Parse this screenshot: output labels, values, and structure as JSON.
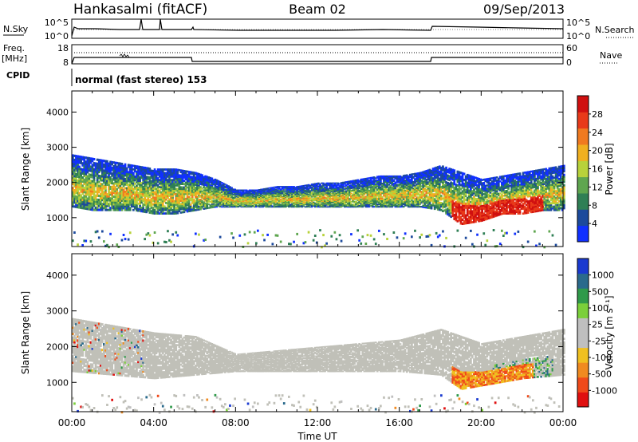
{
  "header": {
    "station": "Hankasalmi (fitACF)",
    "beam": "Beam 02",
    "date": "09/Sep/2013"
  },
  "top_panels": {
    "nsky_label": "N.Sky",
    "nsky_ticks": [
      "10^5",
      "10^0"
    ],
    "nsearch_label": "N.Search",
    "nsearch_ticks": [
      "10^5",
      "10^0"
    ],
    "freq_label": "Freq.",
    "freq_unit": "[MHz]",
    "freq_ticks": [
      "18",
      "8"
    ],
    "nave_label": "Nave",
    "nave_ticks": [
      "60",
      "0"
    ],
    "cpid_label": "CPID",
    "cpid_text": "normal (fast stereo) 153"
  },
  "chart_data": [
    {
      "type": "heatmap",
      "title": "",
      "xlabel": "Time UT",
      "ylabel": "Slant Range [km]",
      "x_ticks": [
        "00:00",
        "04:00",
        "08:00",
        "12:00",
        "16:00",
        "20:00",
        "00:00"
      ],
      "y_ticks": [
        "1000",
        "2000",
        "3000",
        "4000"
      ],
      "xlim": [
        0,
        24
      ],
      "ylim": [
        180,
        4600
      ],
      "colorbar": {
        "label": "Power [dB]",
        "ticks": [
          "4",
          "8",
          "12",
          "16",
          "20",
          "24",
          "28"
        ],
        "colors": [
          "#1030ff",
          "#1c4a9c",
          "#2f7f55",
          "#5fa64f",
          "#b8d23a",
          "#f0b020",
          "#f07a20",
          "#e83a1a",
          "#d01010"
        ]
      },
      "echo_bands": [
        {
          "t": 0.0,
          "lo": 1300,
          "hi": 2800
        },
        {
          "t": 1.0,
          "lo": 1200,
          "hi": 2700
        },
        {
          "t": 2.0,
          "lo": 1200,
          "hi": 2600
        },
        {
          "t": 3.0,
          "lo": 1200,
          "hi": 2500
        },
        {
          "t": 4.0,
          "lo": 1100,
          "hi": 2400
        },
        {
          "t": 5.0,
          "lo": 1100,
          "hi": 2400
        },
        {
          "t": 6.0,
          "lo": 1200,
          "hi": 2300
        },
        {
          "t": 7.0,
          "lo": 1300,
          "hi": 2100
        },
        {
          "t": 8.0,
          "lo": 1300,
          "hi": 1800
        },
        {
          "t": 9.0,
          "lo": 1300,
          "hi": 1800
        },
        {
          "t": 10.0,
          "lo": 1300,
          "hi": 1900
        },
        {
          "t": 11.0,
          "lo": 1300,
          "hi": 1900
        },
        {
          "t": 12.0,
          "lo": 1300,
          "hi": 2000
        },
        {
          "t": 13.0,
          "lo": 1300,
          "hi": 2000
        },
        {
          "t": 14.0,
          "lo": 1300,
          "hi": 2100
        },
        {
          "t": 15.0,
          "lo": 1300,
          "hi": 2200
        },
        {
          "t": 16.0,
          "lo": 1300,
          "hi": 2200
        },
        {
          "t": 17.0,
          "lo": 1300,
          "hi": 2300
        },
        {
          "t": 18.0,
          "lo": 1200,
          "hi": 2500
        },
        {
          "t": 19.0,
          "lo": 800,
          "hi": 2300
        },
        {
          "t": 20.0,
          "lo": 900,
          "hi": 2100
        },
        {
          "t": 21.0,
          "lo": 1100,
          "hi": 2200
        },
        {
          "t": 22.0,
          "lo": 1100,
          "hi": 2300
        },
        {
          "t": 23.0,
          "lo": 1200,
          "hi": 2400
        },
        {
          "t": 24.0,
          "lo": 1200,
          "hi": 2500
        }
      ]
    },
    {
      "type": "heatmap",
      "title": "",
      "xlabel": "Time UT",
      "ylabel": "Slant Range [km]",
      "x_ticks": [
        "00:00",
        "04:00",
        "08:00",
        "12:00",
        "16:00",
        "20:00",
        "00:00"
      ],
      "y_ticks": [
        "1000",
        "2000",
        "3000",
        "4000"
      ],
      "xlim": [
        0,
        24
      ],
      "ylim": [
        180,
        4600
      ],
      "colorbar": {
        "label": "Velocity [m s⁻¹]",
        "ticks": [
          "1000",
          "500",
          "100",
          "25",
          "-25",
          "-100",
          "-500",
          "-1000"
        ],
        "colors": [
          "#1a3ad0",
          "#2a6a8c",
          "#2f9a4a",
          "#7bd03a",
          "#bfbfbf",
          "#bfbfbf",
          "#f0c020",
          "#f08a20",
          "#f04a1a",
          "#e01010"
        ]
      },
      "echo_bands": [
        {
          "t": 0.0,
          "lo": 1300,
          "hi": 2800
        },
        {
          "t": 2.0,
          "lo": 1200,
          "hi": 2600
        },
        {
          "t": 4.0,
          "lo": 1100,
          "hi": 2400
        },
        {
          "t": 6.0,
          "lo": 1200,
          "hi": 2300
        },
        {
          "t": 8.0,
          "lo": 1300,
          "hi": 1800
        },
        {
          "t": 10.0,
          "lo": 1300,
          "hi": 1900
        },
        {
          "t": 12.0,
          "lo": 1300,
          "hi": 2000
        },
        {
          "t": 14.0,
          "lo": 1300,
          "hi": 2100
        },
        {
          "t": 16.0,
          "lo": 1300,
          "hi": 2200
        },
        {
          "t": 18.0,
          "lo": 1200,
          "hi": 2500
        },
        {
          "t": 19.0,
          "lo": 800,
          "hi": 2300
        },
        {
          "t": 20.0,
          "lo": 900,
          "hi": 2100
        },
        {
          "t": 22.0,
          "lo": 1100,
          "hi": 2300
        },
        {
          "t": 24.0,
          "lo": 1200,
          "hi": 2500
        }
      ]
    }
  ]
}
